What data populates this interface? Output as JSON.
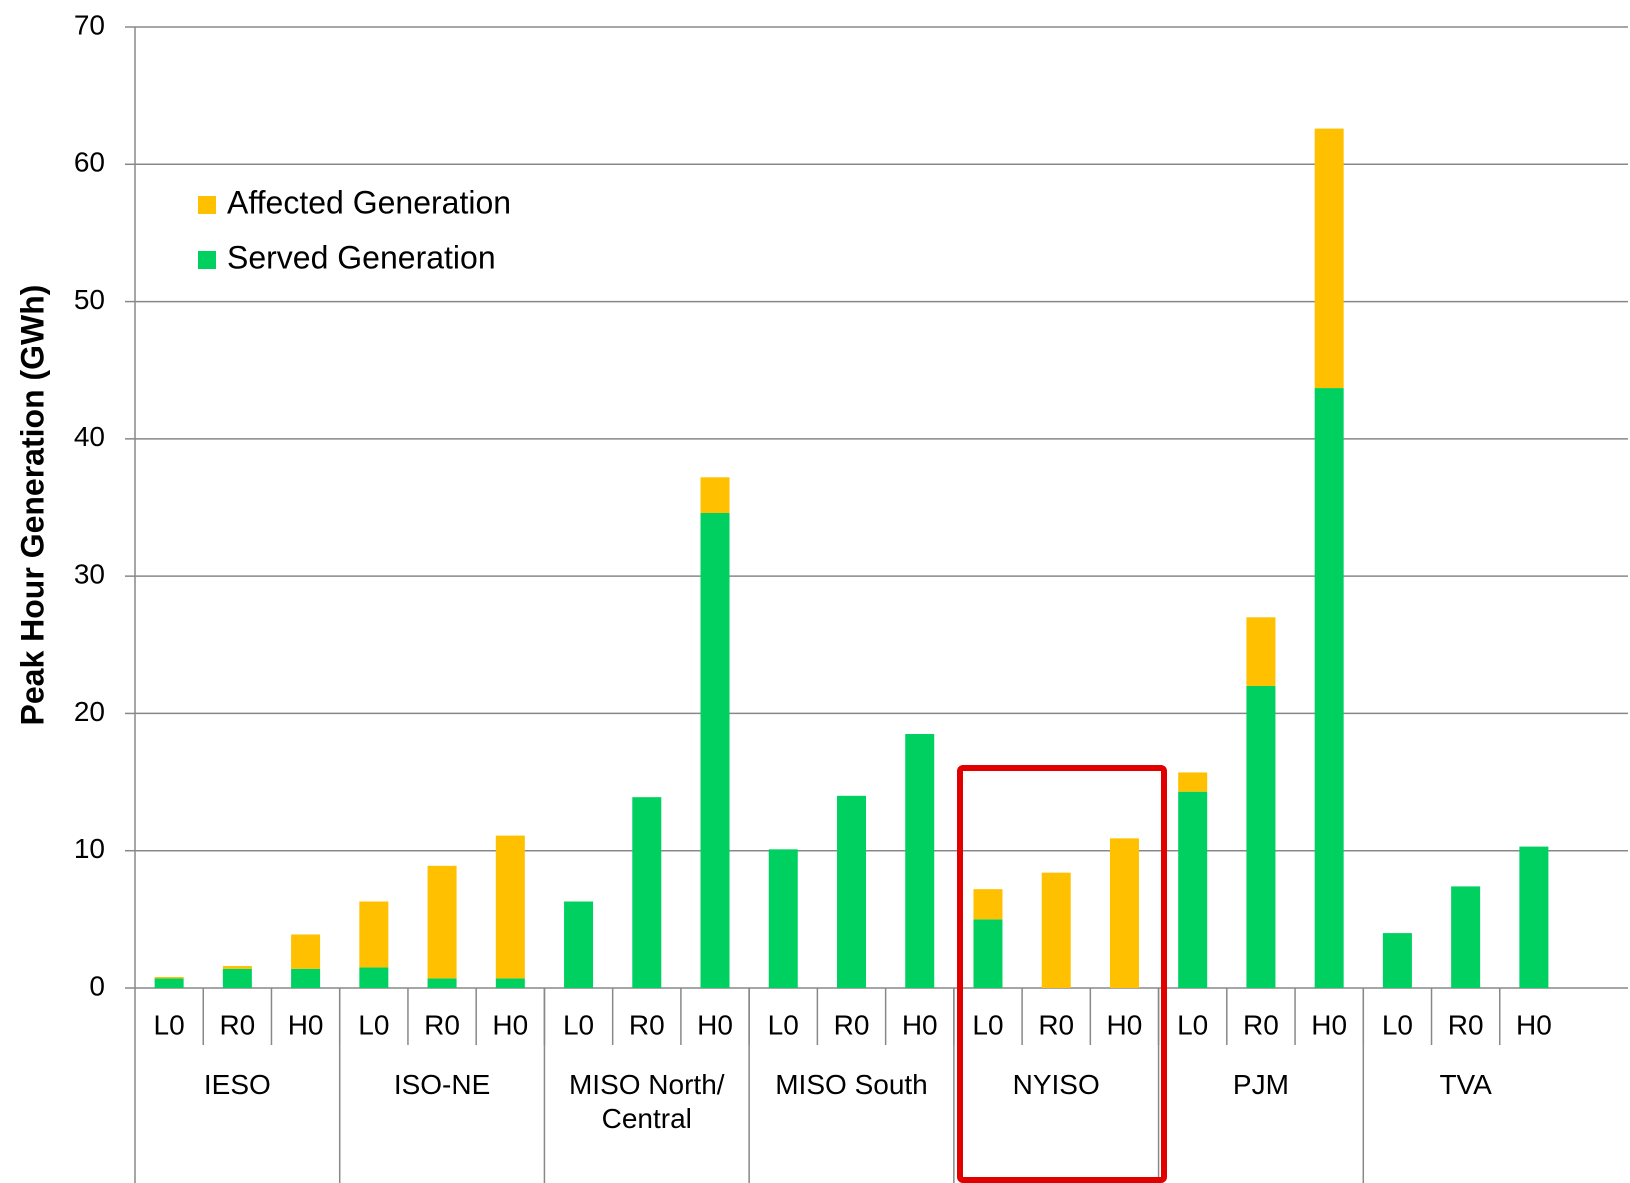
{
  "chart_data": {
    "type": "stacked_bar",
    "y_label": "Peak Hour Generation (GWh)",
    "categories": [
      "L0",
      "R0",
      "H0",
      "L0",
      "R0",
      "H0",
      "L0",
      "R0",
      "H0",
      "L0",
      "R0",
      "H0",
      "L0",
      "R0",
      "H0",
      "L0",
      "R0",
      "H0",
      "L0",
      "R0",
      "H0"
    ],
    "groups": [
      "IESO",
      "ISO-NE",
      "MISO North/ Central",
      "MISO South",
      "NYISO",
      "PJM",
      "TVA"
    ],
    "series": [
      {
        "name": "Served Generation",
        "color": "#00d060",
        "values": [
          0.7,
          1.4,
          1.4,
          1.5,
          0.7,
          0.7,
          6.3,
          13.9,
          34.6,
          10.1,
          14.0,
          18.5,
          5.0,
          0,
          0,
          14.3,
          22.0,
          43.7,
          4.0,
          7.4,
          10.3
        ]
      },
      {
        "name": "Affected Generation",
        "color": "#ffc000",
        "values": [
          0.1,
          0.2,
          2.5,
          4.8,
          8.2,
          10.4,
          0,
          0,
          2.6,
          0,
          0,
          0,
          2.2,
          8.4,
          10.9,
          1.4,
          5.0,
          18.9,
          0,
          0,
          0
        ]
      }
    ],
    "ylim": [
      0,
      70
    ],
    "yticks": [
      0,
      10,
      20,
      30,
      40,
      50,
      60,
      70
    ],
    "grid": true,
    "legend": "upper left"
  }
}
